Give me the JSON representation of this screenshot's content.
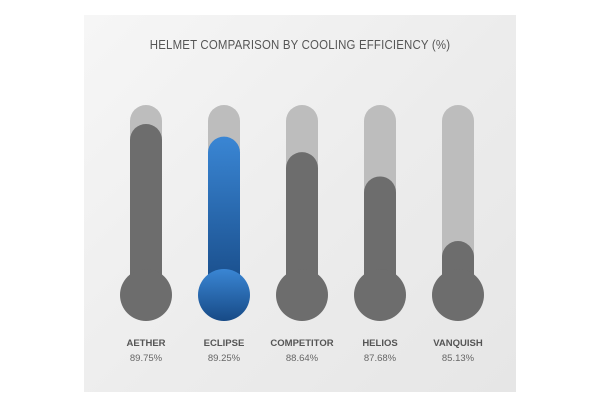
{
  "chart_data": {
    "type": "bar",
    "title": "HELMET COMPARISON BY COOLING EFFICIENCY (%)",
    "categories": [
      "AETHER",
      "ECLIPSE",
      "COMPETITOR",
      "HELIOS",
      "VANQUISH"
    ],
    "values": [
      89.75,
      89.25,
      88.64,
      87.68,
      85.13
    ],
    "value_labels": [
      "89.75%",
      "89.25%",
      "88.64%",
      "87.68%",
      "85.13%"
    ],
    "ylim": [
      83.0,
      90.5
    ],
    "grid": false,
    "legend": "none",
    "highlight_category": "ECLIPSE"
  },
  "colors": {
    "track": "#bdbdbd",
    "fill": "#6d6d6d",
    "highlight_top": "#3a86d4",
    "highlight_bottom": "#174a86"
  }
}
